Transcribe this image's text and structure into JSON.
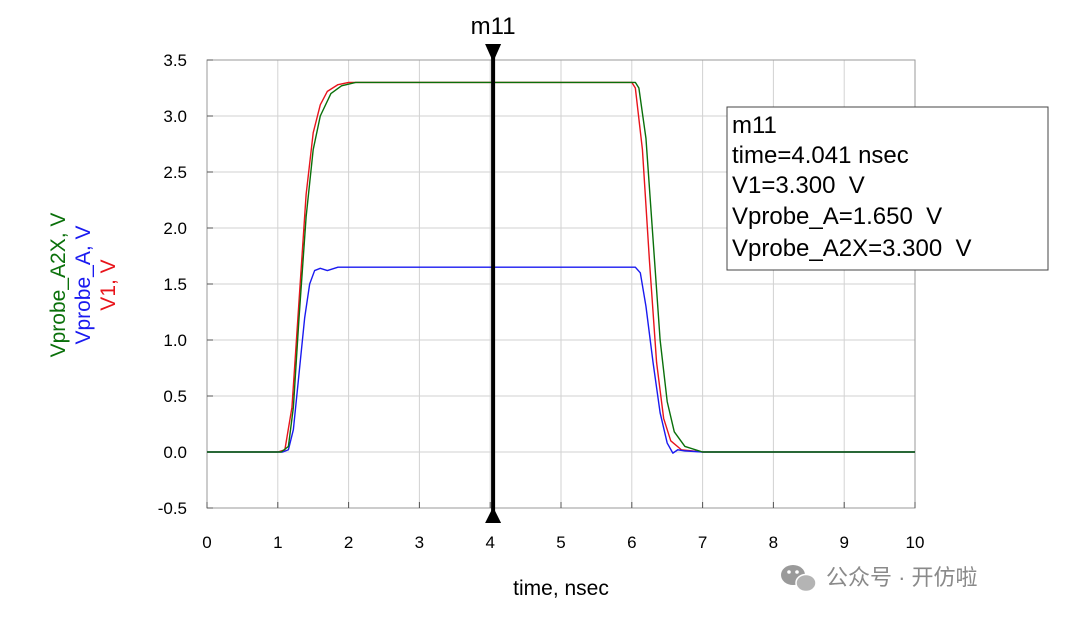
{
  "chart_data": {
    "type": "line",
    "title": "",
    "xlabel": "time, nsec",
    "ylabels": [
      "Vprobe_A2X, V",
      "Vprobe_A, V",
      "V1, V"
    ],
    "xlim": [
      0,
      10
    ],
    "ylim": [
      -0.5,
      3.5
    ],
    "x_ticks": [
      "0",
      "1",
      "2",
      "3",
      "4",
      "5",
      "6",
      "7",
      "8",
      "9",
      "10"
    ],
    "y_ticks": [
      "3.5",
      "3.0",
      "2.5",
      "2.0",
      "1.5",
      "1.0",
      "0.5",
      "0.0",
      "-0.5"
    ],
    "grid": true,
    "series": [
      {
        "name": "V1",
        "color": "#e8141b",
        "points": [
          [
            0,
            0
          ],
          [
            1.0,
            0
          ],
          [
            1.1,
            0.02
          ],
          [
            1.2,
            0.4
          ],
          [
            1.3,
            1.35
          ],
          [
            1.4,
            2.3
          ],
          [
            1.5,
            2.85
          ],
          [
            1.6,
            3.1
          ],
          [
            1.7,
            3.22
          ],
          [
            1.85,
            3.28
          ],
          [
            2.0,
            3.3
          ],
          [
            6.0,
            3.3
          ],
          [
            6.05,
            3.25
          ],
          [
            6.15,
            2.7
          ],
          [
            6.25,
            1.7
          ],
          [
            6.35,
            0.8
          ],
          [
            6.45,
            0.3
          ],
          [
            6.55,
            0.1
          ],
          [
            6.7,
            0.02
          ],
          [
            7.0,
            0
          ],
          [
            10,
            0
          ]
        ]
      },
      {
        "name": "Vprobe_A",
        "color": "#1a1af0",
        "points": [
          [
            0,
            0
          ],
          [
            1.07,
            0
          ],
          [
            1.15,
            0.02
          ],
          [
            1.22,
            0.2
          ],
          [
            1.3,
            0.7
          ],
          [
            1.38,
            1.2
          ],
          [
            1.45,
            1.5
          ],
          [
            1.52,
            1.62
          ],
          [
            1.6,
            1.64
          ],
          [
            1.7,
            1.62
          ],
          [
            1.85,
            1.65
          ],
          [
            2.0,
            1.65
          ],
          [
            6.05,
            1.65
          ],
          [
            6.12,
            1.6
          ],
          [
            6.2,
            1.3
          ],
          [
            6.3,
            0.8
          ],
          [
            6.4,
            0.35
          ],
          [
            6.5,
            0.08
          ],
          [
            6.58,
            -0.01
          ],
          [
            6.65,
            0.02
          ],
          [
            6.75,
            0.01
          ],
          [
            7.0,
            0
          ],
          [
            10,
            0
          ]
        ]
      },
      {
        "name": "Vprobe_A2X",
        "color": "#0a700a",
        "points": [
          [
            0,
            0
          ],
          [
            1.05,
            0
          ],
          [
            1.15,
            0.05
          ],
          [
            1.22,
            0.4
          ],
          [
            1.3,
            1.2
          ],
          [
            1.4,
            2.1
          ],
          [
            1.5,
            2.7
          ],
          [
            1.6,
            3.0
          ],
          [
            1.75,
            3.2
          ],
          [
            1.9,
            3.27
          ],
          [
            2.1,
            3.3
          ],
          [
            6.05,
            3.3
          ],
          [
            6.1,
            3.25
          ],
          [
            6.2,
            2.8
          ],
          [
            6.3,
            1.9
          ],
          [
            6.4,
            1.0
          ],
          [
            6.5,
            0.45
          ],
          [
            6.6,
            0.18
          ],
          [
            6.75,
            0.05
          ],
          [
            7.0,
            0
          ],
          [
            10,
            0
          ]
        ]
      }
    ],
    "marker": {
      "name": "m11",
      "x": 4.041,
      "readout": [
        "m11",
        "time=4.041 nsec",
        "V1=3.300  V",
        "Vprobe_A=1.650  V",
        "Vprobe_A2X=3.300  V"
      ]
    }
  },
  "watermark": {
    "icon": "wechat-icon",
    "text": "公众号 · 开仿啦"
  }
}
